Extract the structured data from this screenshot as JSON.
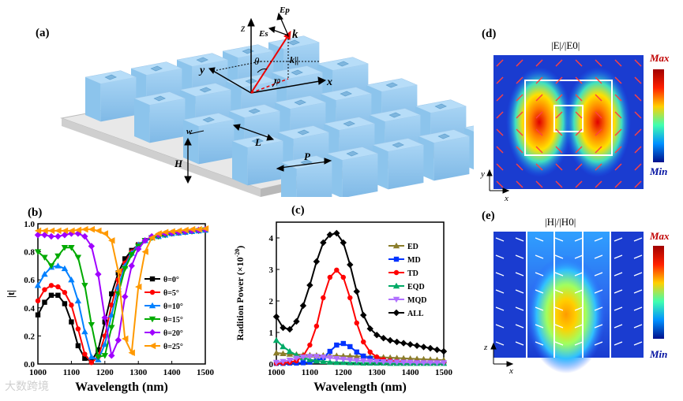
{
  "panels": {
    "a": {
      "label": "(a)",
      "symbols": {
        "z": "z",
        "y": "y",
        "x": "x",
        "k": "k",
        "k_par": "k||",
        "Ep": "Ep",
        "Es": "Es",
        "theta": "θ",
        "phi": "φ",
        "w": "w",
        "L": "L",
        "H": "H",
        "P": "P"
      }
    },
    "b": {
      "label": "(b)"
    },
    "c": {
      "label": "(c)"
    },
    "d": {
      "label": "(d)",
      "title": "|E|/|E0|",
      "cb_max": "Max",
      "cb_min": "Min",
      "ax1": "y",
      "ax2": "x"
    },
    "e": {
      "label": "(e)",
      "title": "|H|/|H0|",
      "cb_max": "Max",
      "cb_min": "Min",
      "ax1": "z",
      "ax2": "x"
    }
  },
  "chart_data": [
    {
      "type": "line",
      "panel": "b",
      "xlabel": "Wavelength  (nm)",
      "ylabel": "|t|",
      "xlim": [
        1000,
        1500
      ],
      "ylim": [
        0.0,
        1.0
      ],
      "xticks": [
        "1000",
        "1100",
        "1200",
        "1300",
        "1400",
        "1500"
      ],
      "yticks": [
        "0.0",
        "0.2",
        "0.4",
        "0.6",
        "0.8",
        "1.0"
      ],
      "x": [
        1000,
        1020,
        1040,
        1060,
        1080,
        1100,
        1120,
        1140,
        1160,
        1180,
        1200,
        1220,
        1240,
        1260,
        1280,
        1300,
        1320,
        1340,
        1360,
        1380,
        1400,
        1420,
        1440,
        1460,
        1480,
        1500
      ],
      "series": [
        {
          "name": "θ=0°",
          "color": "#000000",
          "marker": "square",
          "values": [
            0.35,
            0.44,
            0.49,
            0.49,
            0.43,
            0.3,
            0.13,
            0.04,
            0.02,
            0.1,
            0.3,
            0.5,
            0.65,
            0.75,
            0.81,
            0.85,
            0.88,
            0.9,
            0.91,
            0.92,
            0.93,
            0.935,
            0.94,
            0.945,
            0.95,
            0.955
          ]
        },
        {
          "name": "θ=5°",
          "color": "#ff0000",
          "marker": "circle",
          "values": [
            0.45,
            0.53,
            0.56,
            0.55,
            0.51,
            0.42,
            0.25,
            0.07,
            0.01,
            0.05,
            0.2,
            0.42,
            0.6,
            0.72,
            0.8,
            0.85,
            0.88,
            0.9,
            0.91,
            0.92,
            0.93,
            0.935,
            0.94,
            0.945,
            0.95,
            0.955
          ]
        },
        {
          "name": "θ=10°",
          "color": "#0080ff",
          "marker": "triangle-up",
          "values": [
            0.56,
            0.64,
            0.69,
            0.7,
            0.68,
            0.6,
            0.45,
            0.23,
            0.05,
            0.03,
            0.14,
            0.35,
            0.55,
            0.7,
            0.79,
            0.85,
            0.88,
            0.9,
            0.91,
            0.92,
            0.93,
            0.935,
            0.94,
            0.945,
            0.95,
            0.955
          ]
        },
        {
          "name": "θ=15°",
          "color": "#00aa00",
          "marker": "triangle-down",
          "values": [
            0.8,
            0.76,
            0.7,
            0.77,
            0.83,
            0.83,
            0.76,
            0.56,
            0.28,
            0.05,
            0.06,
            0.26,
            0.5,
            0.68,
            0.78,
            0.84,
            0.88,
            0.9,
            0.91,
            0.92,
            0.93,
            0.935,
            0.94,
            0.945,
            0.95,
            0.955
          ]
        },
        {
          "name": "θ=20°",
          "color": "#a000ff",
          "marker": "diamond",
          "values": [
            0.92,
            0.92,
            0.91,
            0.91,
            0.92,
            0.93,
            0.93,
            0.91,
            0.84,
            0.64,
            0.33,
            0.06,
            0.17,
            0.48,
            0.7,
            0.82,
            0.88,
            0.91,
            0.92,
            0.93,
            0.935,
            0.94,
            0.945,
            0.95,
            0.955,
            0.96
          ]
        },
        {
          "name": "θ=25°",
          "color": "#ff9900",
          "marker": "left-triangle",
          "values": [
            0.95,
            0.95,
            0.95,
            0.95,
            0.95,
            0.95,
            0.955,
            0.96,
            0.96,
            0.95,
            0.93,
            0.88,
            0.66,
            0.18,
            0.08,
            0.55,
            0.8,
            0.9,
            0.93,
            0.94,
            0.945,
            0.95,
            0.955,
            0.96,
            0.96,
            0.965
          ]
        }
      ]
    },
    {
      "type": "line",
      "panel": "c",
      "xlabel": "Wavelength  (nm)",
      "ylabel": "Radition Power (×10",
      "ylabel_exp": "-20",
      "ylabel_end": ")",
      "xlim": [
        1000,
        1500
      ],
      "ylim": [
        0,
        4.5
      ],
      "xticks": [
        "1000",
        "1100",
        "1200",
        "1300",
        "1400",
        "1500"
      ],
      "yticks": [
        "0",
        "1",
        "2",
        "3",
        "4"
      ],
      "x": [
        1000,
        1020,
        1040,
        1060,
        1080,
        1100,
        1120,
        1140,
        1160,
        1180,
        1200,
        1220,
        1240,
        1260,
        1280,
        1300,
        1320,
        1340,
        1360,
        1380,
        1400,
        1420,
        1440,
        1460,
        1480,
        1500
      ],
      "series": [
        {
          "name": "ED",
          "color": "#8b7d2a",
          "marker": "triangle-up",
          "values": [
            0.35,
            0.33,
            0.31,
            0.3,
            0.29,
            0.28,
            0.27,
            0.27,
            0.26,
            0.26,
            0.25,
            0.25,
            0.24,
            0.24,
            0.23,
            0.22,
            0.21,
            0.2,
            0.19,
            0.18,
            0.17,
            0.16,
            0.15,
            0.14,
            0.13,
            0.12
          ]
        },
        {
          "name": "MD",
          "color": "#0033ff",
          "marker": "square",
          "values": [
            0.02,
            0.02,
            0.03,
            0.03,
            0.04,
            0.06,
            0.1,
            0.2,
            0.4,
            0.6,
            0.65,
            0.55,
            0.38,
            0.25,
            0.18,
            0.13,
            0.1,
            0.08,
            0.06,
            0.05,
            0.04,
            0.04,
            0.03,
            0.03,
            0.03,
            0.03
          ]
        },
        {
          "name": "TD",
          "color": "#ff0000",
          "marker": "circle",
          "values": [
            0.02,
            0.03,
            0.05,
            0.1,
            0.25,
            0.6,
            1.2,
            2.1,
            2.75,
            2.98,
            2.75,
            2.1,
            1.3,
            0.7,
            0.38,
            0.22,
            0.14,
            0.1,
            0.08,
            0.06,
            0.05,
            0.05,
            0.04,
            0.04,
            0.04,
            0.04
          ]
        },
        {
          "name": "EQD",
          "color": "#00aa66",
          "marker": "triangle-up",
          "values": [
            0.75,
            0.55,
            0.4,
            0.28,
            0.2,
            0.14,
            0.1,
            0.08,
            0.06,
            0.05,
            0.05,
            0.04,
            0.04,
            0.03,
            0.03,
            0.03,
            0.03,
            0.02,
            0.02,
            0.02,
            0.02,
            0.02,
            0.02,
            0.02,
            0.02,
            0.02
          ]
        },
        {
          "name": "MQD",
          "color": "#b070ff",
          "marker": "triangle-down",
          "values": [
            0.05,
            0.08,
            0.12,
            0.18,
            0.22,
            0.24,
            0.24,
            0.22,
            0.2,
            0.17,
            0.15,
            0.13,
            0.11,
            0.1,
            0.09,
            0.08,
            0.07,
            0.06,
            0.06,
            0.05,
            0.05,
            0.04,
            0.04,
            0.04,
            0.04,
            0.04
          ]
        },
        {
          "name": "ALL",
          "color": "#000000",
          "marker": "diamond",
          "values": [
            1.5,
            1.15,
            1.1,
            1.35,
            1.85,
            2.5,
            3.25,
            3.85,
            4.1,
            4.15,
            3.85,
            3.15,
            2.3,
            1.55,
            1.12,
            0.92,
            0.82,
            0.75,
            0.7,
            0.66,
            0.62,
            0.58,
            0.54,
            0.5,
            0.45,
            0.4
          ]
        }
      ]
    }
  ],
  "watermark": "大数跨境"
}
